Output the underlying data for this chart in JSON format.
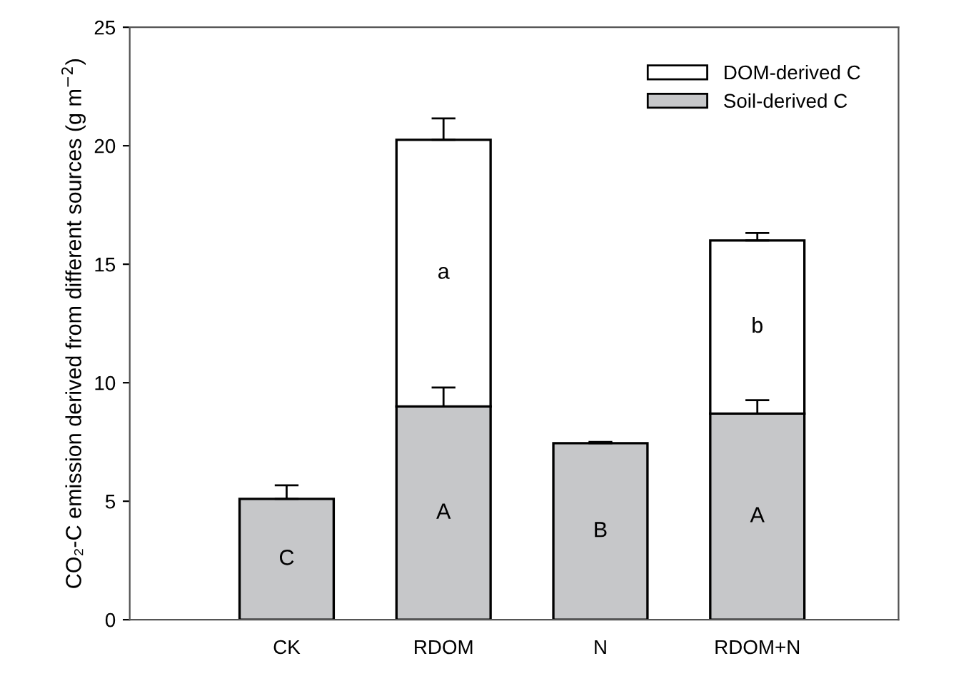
{
  "chart_data": {
    "type": "bar",
    "stacked": true,
    "ylabel": "CO₂-C emission derived from different sources (g m$^{−2}$)",
    "categories": [
      "CK",
      "RDOM",
      "N",
      "RDOM+N"
    ],
    "series": [
      {
        "name": "Soil-derived C",
        "color": "#c6c7c9",
        "values": [
          5.1,
          9.0,
          7.45,
          8.7
        ],
        "errors": [
          0.57,
          0.8,
          0.05,
          0.56
        ],
        "value_labels": [
          "C",
          "A",
          "B",
          "A"
        ]
      },
      {
        "name": "DOM-derived C",
        "color": "#ffffff",
        "values": [
          null,
          11.25,
          null,
          7.3
        ],
        "errors": [
          null,
          0.9,
          null,
          0.32
        ],
        "value_labels": [
          null,
          "a",
          null,
          "b"
        ]
      }
    ],
    "ylim": [
      0,
      25
    ],
    "yticks": [
      0,
      5,
      10,
      15,
      20,
      25
    ],
    "legend": "top right"
  }
}
